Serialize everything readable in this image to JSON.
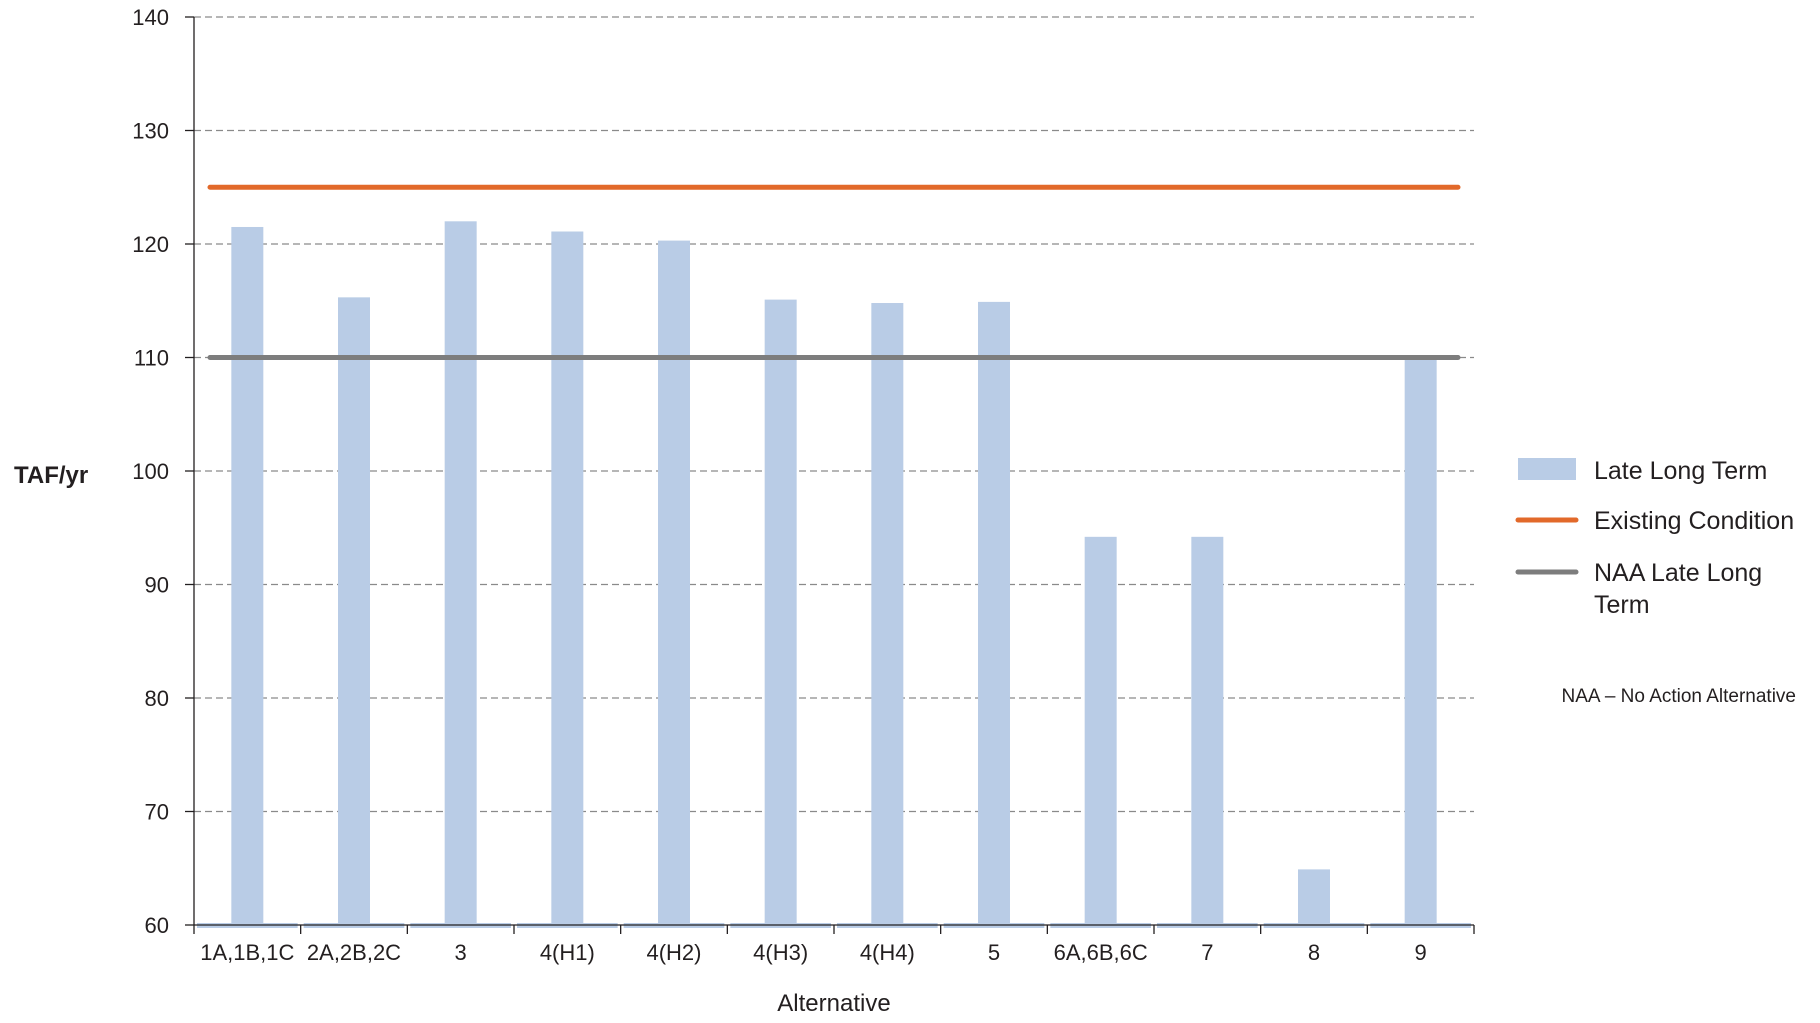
{
  "chart_data": {
    "type": "bar",
    "xlabel": "Alternative",
    "ylabel": "TAF/yr",
    "ylim": [
      60,
      140
    ],
    "yticks": [
      60,
      70,
      80,
      90,
      100,
      110,
      120,
      130,
      140
    ],
    "grid": "horizontal-dashed",
    "legend_position": "right",
    "categories": [
      "1A,1B,1C",
      "2A,2B,2C",
      "3",
      "4(H1)",
      "4(H2)",
      "4(H3)",
      "4(H4)",
      "5",
      "6A,6B,6C",
      "7",
      "8",
      "9"
    ],
    "series": [
      {
        "name": "Late Long Term",
        "type": "bar",
        "color": "#b9cce6",
        "values": [
          121.5,
          115.3,
          122.0,
          121.1,
          120.3,
          115.1,
          114.8,
          114.9,
          94.2,
          94.2,
          64.9,
          110.0
        ]
      }
    ],
    "reference_lines": [
      {
        "name": "Existing Condition",
        "color": "#e2692a",
        "value": 125.0
      },
      {
        "name": "NAA Late Long Term",
        "color": "#7d7d7d",
        "value": 110.0
      }
    ],
    "legend": [
      {
        "label": "Late Long Term",
        "kind": "bar",
        "color": "#b9cce6"
      },
      {
        "label": "Existing Condition",
        "kind": "line",
        "color": "#e2692a"
      },
      {
        "label_lines": [
          "NAA Late Long",
          "Term"
        ],
        "kind": "line",
        "color": "#7d7d7d"
      }
    ],
    "note": "NAA – No Action Alternative"
  }
}
